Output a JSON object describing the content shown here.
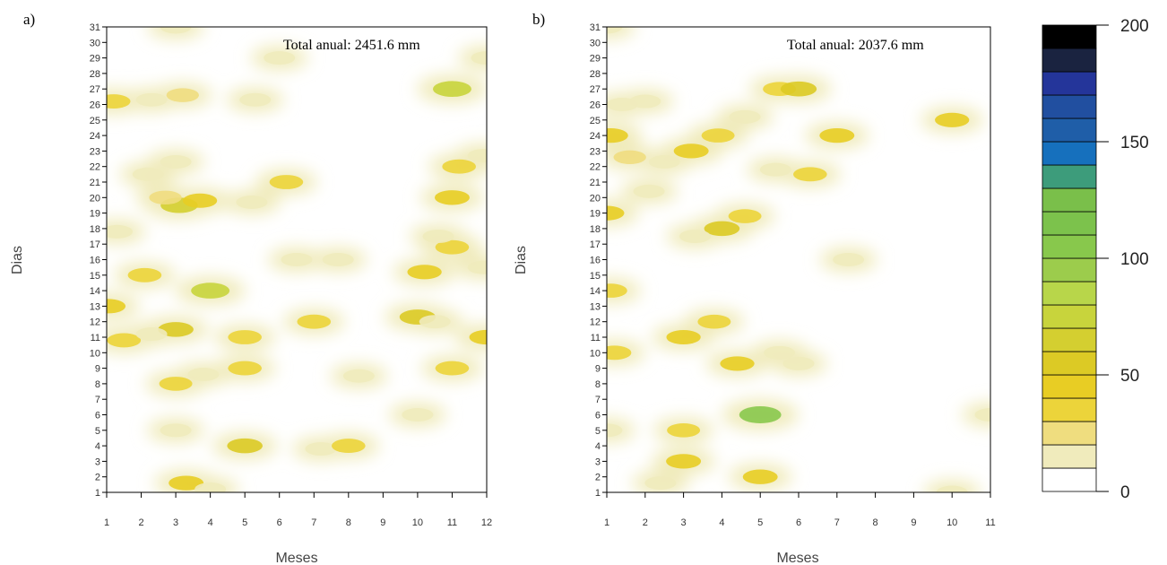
{
  "chart_data": [
    {
      "type": "heatmap",
      "panel_label": "a)",
      "annotation": "Total anual: 2451.6 mm",
      "xlabel": "Meses",
      "ylabel": "Dias",
      "x_ticks": [
        1,
        2,
        3,
        4,
        5,
        6,
        7,
        8,
        9,
        10,
        11,
        12
      ],
      "y_ticks": [
        1,
        2,
        3,
        4,
        5,
        6,
        7,
        8,
        9,
        10,
        11,
        12,
        13,
        14,
        15,
        16,
        17,
        18,
        19,
        20,
        21,
        22,
        23,
        24,
        25,
        26,
        27,
        28,
        29,
        30,
        31
      ],
      "xlim": [
        1,
        12
      ],
      "ylim": [
        1,
        31
      ],
      "points": [
        {
          "month": 1.2,
          "day": 26.2,
          "value": 35
        },
        {
          "month": 2.3,
          "day": 26.3,
          "value": 15
        },
        {
          "month": 3.2,
          "day": 26.6,
          "value": 25
        },
        {
          "month": 5.3,
          "day": 26.3,
          "value": 15
        },
        {
          "month": 11,
          "day": 27,
          "value": 75
        },
        {
          "month": 3,
          "day": 31,
          "value": 15
        },
        {
          "month": 6,
          "day": 29,
          "value": 15
        },
        {
          "month": 12,
          "day": 29,
          "value": 15
        },
        {
          "month": 2.2,
          "day": 21.5,
          "value": 15
        },
        {
          "month": 3,
          "day": 22.3,
          "value": 15
        },
        {
          "month": 3.1,
          "day": 19.5,
          "value": 65
        },
        {
          "month": 3.7,
          "day": 19.8,
          "value": 40
        },
        {
          "month": 2.7,
          "day": 20,
          "value": 25
        },
        {
          "month": 5.2,
          "day": 19.7,
          "value": 15
        },
        {
          "month": 6.2,
          "day": 21,
          "value": 35
        },
        {
          "month": 11,
          "day": 20,
          "value": 45
        },
        {
          "month": 11.2,
          "day": 22,
          "value": 35
        },
        {
          "month": 11.9,
          "day": 22.7,
          "value": 15
        },
        {
          "month": 1.3,
          "day": 17.8,
          "value": 15
        },
        {
          "month": 2.1,
          "day": 15,
          "value": 35
        },
        {
          "month": 1.05,
          "day": 13,
          "value": 40
        },
        {
          "month": 4,
          "day": 14,
          "value": 75
        },
        {
          "month": 10.2,
          "day": 15.2,
          "value": 40
        },
        {
          "month": 11,
          "day": 16.8,
          "value": 35
        },
        {
          "month": 10.6,
          "day": 17.5,
          "value": 15
        },
        {
          "month": 11.9,
          "day": 15.5,
          "value": 15
        },
        {
          "month": 6.5,
          "day": 16,
          "value": 15
        },
        {
          "month": 7.7,
          "day": 16,
          "value": 15
        },
        {
          "month": 3,
          "day": 11.5,
          "value": 50
        },
        {
          "month": 1.5,
          "day": 10.8,
          "value": 35
        },
        {
          "month": 2.3,
          "day": 11.2,
          "value": 15
        },
        {
          "month": 5,
          "day": 11,
          "value": 35
        },
        {
          "month": 7,
          "day": 12,
          "value": 35
        },
        {
          "month": 10,
          "day": 12.3,
          "value": 55
        },
        {
          "month": 10.5,
          "day": 12,
          "value": 15
        },
        {
          "month": 12,
          "day": 11,
          "value": 45
        },
        {
          "month": 3,
          "day": 8,
          "value": 30
        },
        {
          "month": 3.8,
          "day": 8.6,
          "value": 15
        },
        {
          "month": 5,
          "day": 9,
          "value": 35
        },
        {
          "month": 8.3,
          "day": 8.5,
          "value": 15
        },
        {
          "month": 11,
          "day": 9,
          "value": 35
        },
        {
          "month": 10,
          "day": 6,
          "value": 15
        },
        {
          "month": 3,
          "day": 5,
          "value": 15
        },
        {
          "month": 5,
          "day": 4,
          "value": 50
        },
        {
          "month": 7.2,
          "day": 3.8,
          "value": 15
        },
        {
          "month": 8,
          "day": 4,
          "value": 35
        },
        {
          "month": 3.3,
          "day": 1.6,
          "value": 45
        },
        {
          "month": 4,
          "day": 1.2,
          "value": 15
        }
      ]
    },
    {
      "type": "heatmap",
      "panel_label": "b)",
      "annotation": "Total anual: 2037.6 mm",
      "xlabel": "Meses",
      "ylabel": "Dias",
      "x_ticks": [
        1,
        2,
        3,
        4,
        5,
        6,
        7,
        8,
        9,
        10,
        11
      ],
      "y_ticks": [
        1,
        2,
        3,
        4,
        5,
        6,
        7,
        8,
        9,
        10,
        11,
        12,
        13,
        14,
        15,
        16,
        17,
        18,
        19,
        20,
        21,
        22,
        23,
        24,
        25,
        26,
        27,
        28,
        29,
        30,
        31
      ],
      "xlim": [
        1,
        11
      ],
      "ylim": [
        1,
        31
      ],
      "points": [
        {
          "month": 1,
          "day": 31,
          "value": 15
        },
        {
          "month": 2,
          "day": 26.2,
          "value": 15
        },
        {
          "month": 5.5,
          "day": 27,
          "value": 30
        },
        {
          "month": 6,
          "day": 27,
          "value": 55
        },
        {
          "month": 1.4,
          "day": 26,
          "value": 15
        },
        {
          "month": 10,
          "day": 25,
          "value": 40
        },
        {
          "month": 4.6,
          "day": 25.2,
          "value": 15
        },
        {
          "month": 1.1,
          "day": 24,
          "value": 45
        },
        {
          "month": 1.6,
          "day": 22.6,
          "value": 25
        },
        {
          "month": 3.2,
          "day": 23,
          "value": 45
        },
        {
          "month": 3.9,
          "day": 24,
          "value": 30
        },
        {
          "month": 2.5,
          "day": 22.3,
          "value": 15
        },
        {
          "month": 7,
          "day": 24,
          "value": 45
        },
        {
          "month": 6.3,
          "day": 21.5,
          "value": 35
        },
        {
          "month": 5.4,
          "day": 21.8,
          "value": 15
        },
        {
          "month": 1,
          "day": 19,
          "value": 45
        },
        {
          "month": 2.1,
          "day": 20.4,
          "value": 15
        },
        {
          "month": 4,
          "day": 18,
          "value": 50
        },
        {
          "month": 4.6,
          "day": 18.8,
          "value": 30
        },
        {
          "month": 3.3,
          "day": 17.5,
          "value": 15
        },
        {
          "month": 1.1,
          "day": 14,
          "value": 30
        },
        {
          "month": 7.3,
          "day": 16,
          "value": 15
        },
        {
          "month": 1.2,
          "day": 10,
          "value": 35
        },
        {
          "month": 3,
          "day": 11,
          "value": 40
        },
        {
          "month": 3.8,
          "day": 12,
          "value": 30
        },
        {
          "month": 4.4,
          "day": 9.3,
          "value": 40
        },
        {
          "month": 5.5,
          "day": 10,
          "value": 15
        },
        {
          "month": 6,
          "day": 9.3,
          "value": 15
        },
        {
          "month": 5,
          "day": 6,
          "value": 105
        },
        {
          "month": 3,
          "day": 5,
          "value": 30
        },
        {
          "month": 3,
          "day": 3,
          "value": 45
        },
        {
          "month": 2.4,
          "day": 1.6,
          "value": 15
        },
        {
          "month": 5,
          "day": 2,
          "value": 45
        },
        {
          "month": 1,
          "day": 5,
          "value": 15
        },
        {
          "month": 11,
          "day": 6,
          "value": 15
        },
        {
          "month": 10,
          "day": 1,
          "value": 15
        }
      ]
    }
  ],
  "colorbar": {
    "ticks": [
      0,
      50,
      100,
      150,
      200
    ],
    "levels": [
      0,
      10,
      20,
      30,
      40,
      50,
      60,
      70,
      80,
      90,
      100,
      110,
      120,
      130,
      140,
      150,
      160,
      170,
      180,
      190,
      200
    ],
    "colors": [
      "#ffffff",
      "#f0ebbc",
      "#efdd7f",
      "#ecd43a",
      "#e8cd24",
      "#dcca25",
      "#d4cf30",
      "#c8d43c",
      "#b8d64a",
      "#9ccc4c",
      "#88c84c",
      "#7cc24c",
      "#7abf4a",
      "#3d9c7b",
      "#1670bd",
      "#1f5ea8",
      "#214fa0",
      "#24359a",
      "#1a2340",
      "#000000"
    ]
  }
}
